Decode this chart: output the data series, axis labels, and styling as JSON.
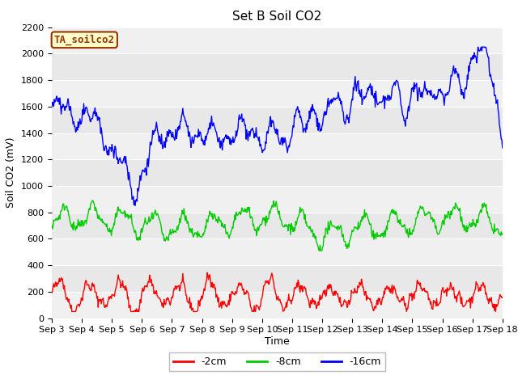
{
  "title": "Set B Soil CO2",
  "xlabel": "Time",
  "ylabel": "Soil CO2 (mV)",
  "ylim": [
    0,
    2200
  ],
  "legend_entries": [
    "-2cm",
    "-8cm",
    "-16cm"
  ],
  "legend_colors": [
    "#ff0000",
    "#00cc00",
    "#0000ff"
  ],
  "sensor_label": "TA_soilco2",
  "background_color": "#ffffff",
  "plot_bg_color": "#e8e8e8",
  "band_color": "#d8d8d8",
  "title_fontsize": 11,
  "axis_fontsize": 9,
  "tick_fontsize": 8,
  "line_width": 1.0,
  "xtick_labels": [
    "Sep 3",
    "Sep 4",
    "Sep 5",
    "Sep 6",
    "Sep 7",
    "Sep 8",
    "Sep 9",
    "Sep 10",
    "Sep 11",
    "Sep 12",
    "Sep 13",
    "Sep 14",
    "Sep 15",
    "Sep 16",
    "Sep 17",
    "Sep 18"
  ],
  "ytick_values": [
    0,
    200,
    400,
    600,
    800,
    1000,
    1200,
    1400,
    1600,
    1800,
    2000,
    2200
  ]
}
